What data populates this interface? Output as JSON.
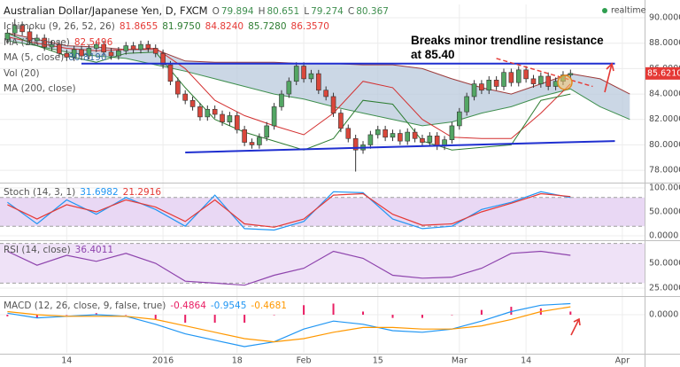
{
  "chart_data": [
    {
      "type": "candlestick",
      "title": "Australian Dollar/Japanese Yen, D, FXCM",
      "status": "realtime",
      "ohlc": [
        {
          "label": "O",
          "value": 79.894
        },
        {
          "label": "H",
          "value": 80.651
        },
        {
          "label": "L",
          "value": 79.274
        },
        {
          "label": "C",
          "value": 80.367
        }
      ],
      "indicators": [
        {
          "name": "Ichimoku (9, 26, 52, 26)",
          "values": [
            81.8655,
            81.975,
            84.824,
            85.728,
            86.357
          ],
          "value_labels": [
            "81.8655",
            "81.9750",
            "84.8240",
            "85.7280",
            "86.3570"
          ],
          "colors": [
            "#e53935",
            "#2e7d32",
            "#e53935",
            "#2e7d32",
            "#e53935"
          ]
        },
        {
          "name": "MA (10, close)",
          "values": [
            82.5496
          ],
          "colors": [
            "#e53935"
          ]
        },
        {
          "name": "MA (5, close)",
          "values": [
            80.819
          ],
          "value_labels": [
            "80.8190"
          ],
          "colors": [
            "#3a6ea5"
          ]
        },
        {
          "name": "Vol (20)",
          "values": []
        },
        {
          "name": "MA (200, close)",
          "values": []
        }
      ],
      "annotation": "Breaks minor trendline resistance at 85.40",
      "last_price": 85.621,
      "last_price_label": "85.6210",
      "last_price_color": "#e53935",
      "xlim": [
        -1,
        86
      ],
      "xticks": [
        {
          "value": 8,
          "label": "14"
        },
        {
          "value": 21,
          "label": "2016"
        },
        {
          "value": 31,
          "label": "18"
        },
        {
          "value": 40,
          "label": "Feb"
        },
        {
          "value": 50,
          "label": "15"
        },
        {
          "value": 61,
          "label": "Mar"
        },
        {
          "value": 70,
          "label": "14"
        },
        {
          "value": 83,
          "label": "Apr"
        }
      ],
      "ylim": [
        77.1,
        91.05
      ],
      "yticks": [
        {
          "value": 90,
          "label": "90.0000"
        },
        {
          "value": 88,
          "label": "88.0000"
        },
        {
          "value": 86,
          "label": "86.0000"
        },
        {
          "value": 84,
          "label": "84.0000"
        },
        {
          "value": 82,
          "label": "82.0000"
        },
        {
          "value": 80,
          "label": "80.0000"
        },
        {
          "value": 78,
          "label": "78.0000"
        }
      ],
      "grid": true,
      "up_color": "#53a664",
      "down_color": "#d9473b",
      "candles": {
        "x": [
          0,
          1,
          2,
          3,
          4,
          5,
          6,
          7,
          8,
          9,
          10,
          11,
          12,
          13,
          14,
          15,
          16,
          17,
          18,
          19,
          20,
          21,
          22,
          23,
          24,
          25,
          26,
          27,
          28,
          29,
          30,
          31,
          32,
          33,
          34,
          35,
          36,
          37,
          38,
          39,
          40,
          41,
          42,
          43,
          44,
          45,
          46,
          47,
          48,
          49,
          50,
          51,
          52,
          53,
          54,
          55,
          56,
          57,
          58,
          59,
          60,
          61,
          62,
          63,
          64,
          65,
          66,
          67,
          68,
          69,
          70,
          71,
          72,
          73,
          74,
          75,
          76
        ],
        "open": [
          88.3,
          88.8,
          89.4,
          88.9,
          88.2,
          88.4,
          87.7,
          87.9,
          87.2,
          86.9,
          87.5,
          87.0,
          87.6,
          87.9,
          87.3,
          87.0,
          87.4,
          87.8,
          87.5,
          87.9,
          87.6,
          87.2,
          86.3,
          85.0,
          84.0,
          83.5,
          83.0,
          82.2,
          82.8,
          82.4,
          81.8,
          82.3,
          81.2,
          80.2,
          80.0,
          80.6,
          81.5,
          83.0,
          84.0,
          85.0,
          86.2,
          85.2,
          85.6,
          84.3,
          83.8,
          82.5,
          81.3,
          80.5,
          79.6,
          80.0,
          80.8,
          81.2,
          80.6,
          80.9,
          80.3,
          81.0,
          80.5,
          80.2,
          80.7,
          79.9,
          80.4,
          81.5,
          82.6,
          83.8,
          84.8,
          84.3,
          85.1,
          84.6,
          85.7,
          84.9,
          85.9,
          85.2,
          84.8,
          85.4,
          84.6,
          85.0,
          85.5
        ],
        "high": [
          89.1,
          89.9,
          89.7,
          89.2,
          88.7,
          88.7,
          88.2,
          88.2,
          87.5,
          87.8,
          87.8,
          87.9,
          88.2,
          88.2,
          87.6,
          87.7,
          88.1,
          88.1,
          88.2,
          88.2,
          87.9,
          87.5,
          86.6,
          85.3,
          84.3,
          83.8,
          83.3,
          83.1,
          83.1,
          82.7,
          82.6,
          82.6,
          81.5,
          80.5,
          80.9,
          81.8,
          83.3,
          84.3,
          85.3,
          86.5,
          86.5,
          85.9,
          85.9,
          84.6,
          84.1,
          82.8,
          81.6,
          80.8,
          80.3,
          81.1,
          81.5,
          81.5,
          81.2,
          81.2,
          81.3,
          81.3,
          80.8,
          81.0,
          81.0,
          80.7,
          81.8,
          82.9,
          84.1,
          85.1,
          85.1,
          85.4,
          85.4,
          86.0,
          86.0,
          86.2,
          86.2,
          85.5,
          85.7,
          85.7,
          85.3,
          85.8,
          85.92
        ],
        "low": [
          88.0,
          88.5,
          88.6,
          87.9,
          87.9,
          87.4,
          87.4,
          86.9,
          86.6,
          86.6,
          86.7,
          86.7,
          87.3,
          87.0,
          86.7,
          86.7,
          87.1,
          87.2,
          87.2,
          87.3,
          86.9,
          86.0,
          84.7,
          83.7,
          83.2,
          82.7,
          81.9,
          81.9,
          82.1,
          81.5,
          81.5,
          80.9,
          79.9,
          79.7,
          79.7,
          80.3,
          81.2,
          82.7,
          83.7,
          84.7,
          84.9,
          84.9,
          84.0,
          83.5,
          82.2,
          81.0,
          80.2,
          77.9,
          79.3,
          79.7,
          80.5,
          80.3,
          80.3,
          80.0,
          80.0,
          80.2,
          79.9,
          79.9,
          79.6,
          79.6,
          80.1,
          81.2,
          82.3,
          83.5,
          84.0,
          84.0,
          84.3,
          84.3,
          84.6,
          84.6,
          84.9,
          84.5,
          84.5,
          84.3,
          84.3,
          84.7,
          85.2
        ],
        "close": [
          88.8,
          89.4,
          88.9,
          88.2,
          88.4,
          87.7,
          87.9,
          87.2,
          86.9,
          87.5,
          87.0,
          87.6,
          87.9,
          87.3,
          87.0,
          87.4,
          87.8,
          87.5,
          87.9,
          87.6,
          87.2,
          86.3,
          85.0,
          84.0,
          83.5,
          83.0,
          82.2,
          82.8,
          82.4,
          81.8,
          82.3,
          81.2,
          80.2,
          80.0,
          80.6,
          81.5,
          83.0,
          84.0,
          85.0,
          86.2,
          85.2,
          85.6,
          84.3,
          83.8,
          82.5,
          81.3,
          80.5,
          79.6,
          80.0,
          80.8,
          81.2,
          80.6,
          80.9,
          80.3,
          81.0,
          80.5,
          80.2,
          80.7,
          79.9,
          80.4,
          81.5,
          82.6,
          83.8,
          84.8,
          84.3,
          85.1,
          84.6,
          85.7,
          84.9,
          85.9,
          85.2,
          84.8,
          85.4,
          84.6,
          85.0,
          85.5,
          85.62
        ]
      },
      "overlay_x": [
        0,
        4,
        8,
        12,
        16,
        20,
        24,
        28,
        32,
        36,
        40,
        44,
        48,
        52,
        56,
        60,
        64,
        68,
        72,
        76
      ],
      "overlays": [
        {
          "color": "#d32f2f",
          "values": [
            88.5,
            88.0,
            87.6,
            87.4,
            87.5,
            87.6,
            86.0,
            83.5,
            82.3,
            81.5,
            80.8,
            82.5,
            85.0,
            84.5,
            82.0,
            80.6,
            80.5,
            80.5,
            82.5,
            84.8
          ]
        },
        {
          "color": "#2e7d32",
          "values": [
            88.8,
            87.8,
            87.0,
            86.5,
            87.2,
            87.3,
            84.5,
            82.0,
            81.0,
            80.3,
            79.6,
            80.5,
            83.5,
            83.2,
            80.3,
            79.6,
            79.8,
            80.0,
            83.5,
            84.0
          ]
        }
      ],
      "cloud": {
        "x": [
          0,
          4,
          8,
          12,
          16,
          20,
          24,
          28,
          32,
          36,
          40,
          44,
          48,
          52,
          56,
          60,
          64,
          68,
          72,
          76,
          80,
          84
        ],
        "upper": [
          88.8,
          88.3,
          87.8,
          87.7,
          87.5,
          87.5,
          86.6,
          86.5,
          86.5,
          86.5,
          86.4,
          86.4,
          86.3,
          86.3,
          86.0,
          85.2,
          84.5,
          84.0,
          84.8,
          85.6,
          85.2,
          84.0
        ],
        "lower": [
          88.2,
          87.8,
          87.3,
          87.0,
          86.8,
          86.3,
          85.8,
          85.2,
          84.6,
          84.0,
          83.6,
          83.0,
          82.5,
          82.0,
          81.5,
          81.8,
          82.5,
          83.0,
          83.8,
          84.4,
          83.0,
          82.0
        ],
        "fill": "#b9c9dc",
        "upper_color": "#9c3b3b",
        "lower_color": "#3f8f4f"
      },
      "trendlines": [
        {
          "color": "#1f2fd0",
          "x": [
            10,
            82
          ],
          "values": [
            86.4,
            86.4
          ]
        },
        {
          "color": "#1f2fd0",
          "x": [
            24,
            82
          ],
          "values": [
            79.4,
            80.3
          ]
        },
        {
          "color": "#e53935",
          "dashed": true,
          "x": [
            66,
            79
          ],
          "values": [
            86.8,
            84.6
          ]
        }
      ]
    },
    {
      "type": "line",
      "name": "Stoch (14, 3, 1)",
      "readouts": [
        31.6982,
        21.2916
      ],
      "readout_colors": [
        "#2196f3",
        "#e53935"
      ],
      "ylim": [
        -7.4,
        107.4
      ],
      "yticks": [
        {
          "value": 100,
          "label": "100.0000"
        },
        {
          "value": 50,
          "label": "50.0000"
        },
        {
          "value": 0,
          "label": "0.0000"
        }
      ],
      "grid": true,
      "band": [
        20,
        80
      ],
      "band_color": "#e9d8f4",
      "x": [
        0,
        4,
        8,
        12,
        16,
        20,
        24,
        28,
        32,
        36,
        40,
        44,
        48,
        52,
        56,
        60,
        64,
        68,
        72,
        76
      ],
      "series": [
        {
          "color": "#2196f3",
          "values": [
            70,
            25,
            75,
            45,
            80,
            55,
            20,
            85,
            15,
            12,
            30,
            92,
            90,
            35,
            15,
            20,
            55,
            70,
            92,
            80
          ]
        },
        {
          "color": "#e53935",
          "values": [
            65,
            35,
            65,
            50,
            75,
            60,
            30,
            75,
            25,
            18,
            35,
            85,
            88,
            45,
            22,
            25,
            50,
            68,
            88,
            82
          ]
        }
      ]
    },
    {
      "type": "line",
      "name": "RSI (14, close)",
      "readouts": [
        36.4011
      ],
      "readout_colors": [
        "#8e44ad"
      ],
      "ylim": [
        17.9,
        71.4
      ],
      "yticks": [
        {
          "value": 50,
          "label": "50.0000"
        },
        {
          "value": 25,
          "label": "25.0000"
        }
      ],
      "grid": true,
      "band": [
        30,
        70
      ],
      "band_color": "#efe2f7",
      "x": [
        0,
        4,
        8,
        12,
        16,
        20,
        24,
        28,
        32,
        36,
        40,
        44,
        48,
        52,
        56,
        60,
        64,
        68,
        72,
        76
      ],
      "series": [
        {
          "color": "#8e44ad",
          "values": [
            62,
            48,
            58,
            52,
            60,
            50,
            32,
            30,
            28,
            38,
            45,
            62,
            55,
            38,
            35,
            36,
            45,
            60,
            62,
            58
          ]
        }
      ]
    },
    {
      "type": "line",
      "name": "MACD (12, 26, close, 9, false, true)",
      "readouts": [
        -0.4864,
        -0.9545,
        -0.4681
      ],
      "readout_colors": [
        "#e91e63",
        "#2196f3",
        "#ff9800"
      ],
      "ylim": [
        -2.39,
        1.06
      ],
      "yticks": [
        {
          "value": 0,
          "label": "0.0000"
        }
      ],
      "grid": true,
      "x": [
        0,
        4,
        8,
        12,
        16,
        20,
        24,
        28,
        32,
        36,
        40,
        44,
        48,
        52,
        56,
        60,
        64,
        68,
        72,
        76
      ],
      "histogram": {
        "color": "#e91e63",
        "values": [
          -0.1,
          -0.2,
          0,
          0.1,
          0,
          -0.3,
          -0.5,
          -0.5,
          -0.5,
          0,
          0.6,
          0.7,
          0.2,
          -0.2,
          -0.2,
          0,
          0.3,
          0.5,
          0.4,
          0.2
        ]
      },
      "series": [
        {
          "color": "#2196f3",
          "values": [
            0.1,
            -0.2,
            -0.1,
            0,
            -0.1,
            -0.6,
            -1.2,
            -1.6,
            -2.0,
            -1.7,
            -0.9,
            -0.4,
            -0.6,
            -1.0,
            -1.1,
            -0.9,
            -0.4,
            0.2,
            0.6,
            0.7
          ]
        },
        {
          "color": "#ff9800",
          "values": [
            0.2,
            0.0,
            -0.1,
            -0.1,
            -0.1,
            -0.3,
            -0.7,
            -1.1,
            -1.5,
            -1.7,
            -1.5,
            -1.1,
            -0.8,
            -0.8,
            -0.9,
            -0.9,
            -0.7,
            -0.3,
            0.2,
            0.5
          ]
        }
      ]
    }
  ]
}
